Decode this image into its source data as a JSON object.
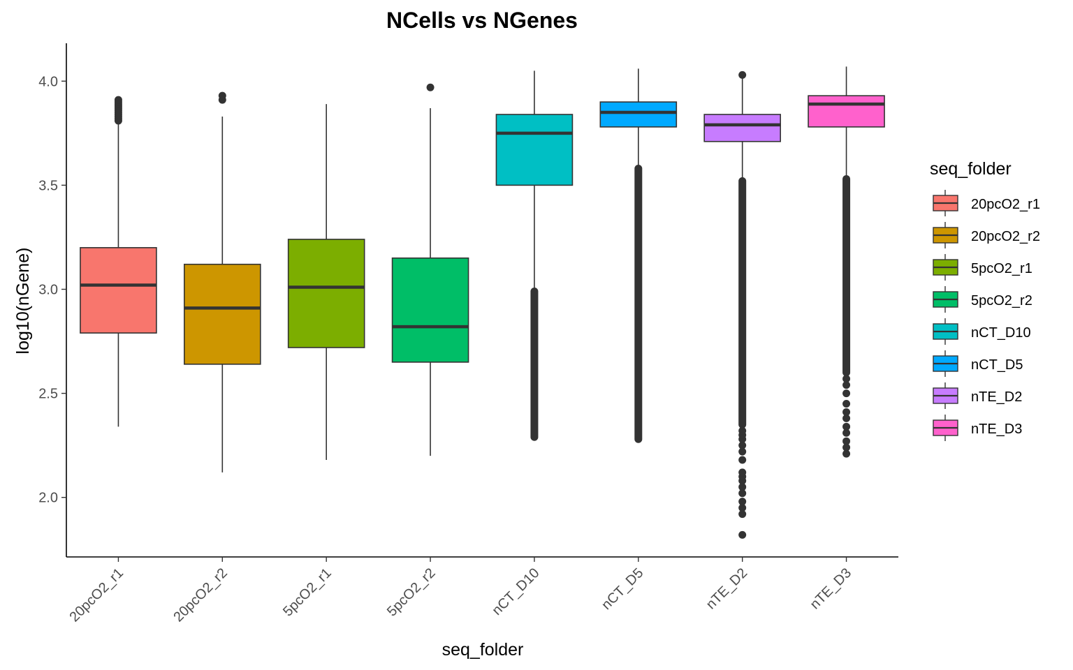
{
  "chart_data": {
    "type": "boxplot",
    "title": "NCells vs NGenes",
    "xlabel": "seq_folder",
    "ylabel": "log10(nGene)",
    "ylim": [
      1.714,
      4.182
    ],
    "yticks": [
      "2.0",
      "2.5",
      "3.0",
      "3.5",
      "4.0"
    ],
    "ytick_values": [
      2.0,
      2.5,
      3.0,
      3.5,
      4.0
    ],
    "grid": false,
    "legend": {
      "title": "seq_folder",
      "position": "right"
    },
    "categories": [
      "20pcO2_r1",
      "20pcO2_r2",
      "5pcO2_r1",
      "5pcO2_r2",
      "nCT_D10",
      "nCT_D5",
      "nTE_D2",
      "nTE_D3"
    ],
    "series": [
      {
        "name": "20pcO2_r1",
        "color": "#F8766D",
        "min": 2.34,
        "q1": 2.79,
        "median": 3.02,
        "q3": 3.2,
        "max": 3.8,
        "outliers": [
          3.81,
          3.82,
          3.83,
          3.84,
          3.85,
          3.86,
          3.87,
          3.88,
          3.89,
          3.9,
          3.91
        ]
      },
      {
        "name": "20pcO2_r2",
        "color": "#CD9600",
        "min": 2.12,
        "q1": 2.64,
        "median": 2.91,
        "q3": 3.12,
        "max": 3.83,
        "outliers": [
          3.91,
          3.93
        ]
      },
      {
        "name": "5pcO2_r1",
        "color": "#7CAE00",
        "min": 2.18,
        "q1": 2.72,
        "median": 3.01,
        "q3": 3.24,
        "max": 3.89,
        "outliers": []
      },
      {
        "name": "5pcO2_r2",
        "color": "#00BE67",
        "min": 2.2,
        "q1": 2.65,
        "median": 2.82,
        "q3": 3.15,
        "max": 3.87,
        "outliers": [
          3.97
        ]
      },
      {
        "name": "nCT_D10",
        "color": "#00BFC4",
        "min": 3.0,
        "q1": 3.5,
        "median": 3.75,
        "q3": 3.84,
        "max": 4.05,
        "outlier_range": [
          2.29,
          2.99
        ],
        "outliers": []
      },
      {
        "name": "nCT_D5",
        "color": "#00A9FF",
        "min": 3.59,
        "q1": 3.78,
        "median": 3.85,
        "q3": 3.9,
        "max": 4.06,
        "outlier_range": [
          2.28,
          3.58
        ],
        "outliers": []
      },
      {
        "name": "nTE_D2",
        "color": "#C77CFF",
        "min": 3.53,
        "q1": 3.71,
        "median": 3.79,
        "q3": 3.84,
        "max": 4.02,
        "outlier_range": [
          2.35,
          3.52
        ],
        "outliers": [
          1.82,
          1.92,
          1.95,
          1.98,
          2.02,
          2.05,
          2.08,
          2.1,
          2.12,
          2.18,
          2.22,
          2.25,
          2.28,
          2.3,
          2.32,
          4.03
        ]
      },
      {
        "name": "nTE_D3",
        "color": "#FF61CC",
        "min": 3.54,
        "q1": 3.78,
        "median": 3.89,
        "q3": 3.93,
        "max": 4.07,
        "outlier_range": [
          2.6,
          3.53
        ],
        "outliers": [
          2.21,
          2.24,
          2.27,
          2.31,
          2.34,
          2.38,
          2.41,
          2.45,
          2.5,
          2.54,
          2.57
        ]
      }
    ]
  }
}
